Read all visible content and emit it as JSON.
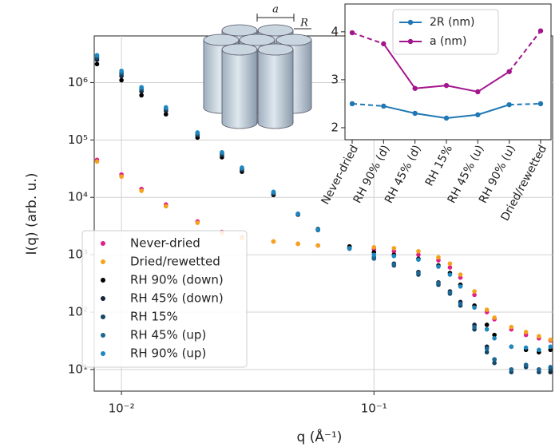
{
  "chart_data": [
    {
      "type": "scatter",
      "x_label": "q (Å⁻¹)",
      "y_label": "I(q) (arb. u.)",
      "x": [
        0.008,
        0.01,
        0.012,
        0.015,
        0.02,
        0.025,
        0.03,
        0.04,
        0.05,
        0.06,
        0.08,
        0.1,
        0.12,
        0.15,
        0.18,
        0.2,
        0.22,
        0.25,
        0.28,
        0.3,
        0.35,
        0.4,
        0.45,
        0.5
      ],
      "series": [
        {
          "name": "Never-dried",
          "color": "#e0218a",
          "values": [
            45000,
            25000,
            14000,
            7500,
            3800,
            2500,
            2000,
            1700,
            1550,
            1450,
            1300,
            1250,
            1150,
            1000,
            800,
            600,
            400,
            200,
            100,
            75,
            50,
            40,
            35,
            32
          ]
        },
        {
          "name": "Dried/rewetted",
          "color": "#f5a21b",
          "values": [
            42000,
            23000,
            13000,
            7000,
            3600,
            2400,
            1950,
            1700,
            1550,
            1450,
            1350,
            1350,
            1300,
            1150,
            900,
            700,
            450,
            230,
            110,
            80,
            55,
            45,
            38,
            33
          ]
        },
        {
          "name": "RH 90% (down)",
          "color": "#000000",
          "values": [
            2100000,
            1100000,
            600000,
            280000,
            110000,
            50000,
            28000,
            11000,
            5000,
            2800,
            1400,
            1100,
            1000,
            850,
            650,
            480,
            300,
            130,
            60,
            40,
            25,
            22,
            20,
            22
          ]
        },
        {
          "name": "RH 45% (down)",
          "color": "#15243a",
          "values": [
            2500000,
            1300000,
            700000,
            320000,
            120000,
            55000,
            30000,
            11500,
            5000,
            2700,
            1300,
            900,
            700,
            500,
            330,
            230,
            150,
            60,
            25,
            15,
            10,
            12,
            10,
            9
          ]
        },
        {
          "name": "RH 15%",
          "color": "#154766",
          "values": [
            2700000,
            1400000,
            750000,
            340000,
            125000,
            57000,
            31000,
            12000,
            5100,
            2700,
            1280,
            860,
            650,
            450,
            300,
            210,
            130,
            50,
            20,
            13,
            9,
            11,
            9,
            10
          ]
        },
        {
          "name": "RH 45% (up)",
          "color": "#1c6794",
          "values": [
            2900000,
            1500000,
            800000,
            360000,
            130000,
            60000,
            32000,
            12000,
            5100,
            2700,
            1280,
            880,
            680,
            480,
            320,
            220,
            140,
            55,
            23,
            15,
            10,
            12,
            10,
            11
          ]
        },
        {
          "name": "RH 90% (up)",
          "color": "#1e88c0",
          "values": [
            3000000,
            1600000,
            830000,
            370000,
            135000,
            61000,
            33000,
            12500,
            5200,
            2750,
            1300,
            1000,
            950,
            820,
            620,
            450,
            280,
            120,
            50,
            35,
            25,
            24,
            22,
            25
          ]
        }
      ],
      "xlim": [
        0.0078,
        0.51
      ],
      "ylim": [
        4.2,
        6500000
      ],
      "xticks": [
        {
          "value": 0.01,
          "label": "10⁻²"
        },
        {
          "value": 0.1,
          "label": "10⁻¹"
        }
      ],
      "yticks": [
        {
          "value": 10,
          "label": "10¹"
        },
        {
          "value": 100,
          "label": "10²"
        },
        {
          "value": 1000,
          "label": "10³"
        },
        {
          "value": 10000,
          "label": "10⁴"
        },
        {
          "value": 100000,
          "label": "10⁵"
        },
        {
          "value": 1000000,
          "label": "10⁶"
        }
      ],
      "log_x": true,
      "log_y": true,
      "grid": true,
      "legend": "lower left"
    },
    {
      "type": "line",
      "categories": [
        "Never-dried",
        "RH 90% (d)",
        "RH 45% (d)",
        "RH 15%",
        "RH 45% (u)",
        "RH 90% (u)",
        "Dried/rewetted"
      ],
      "category_colors": [
        "#e0218a",
        "#000000",
        "#000000",
        "#000000",
        "#000000",
        "#000000",
        "#f5a21b"
      ],
      "series": [
        {
          "name": "2R (nm)",
          "color": "#1f77b4",
          "values": [
            2.5,
            2.45,
            2.3,
            2.2,
            2.27,
            2.48,
            2.5
          ]
        },
        {
          "name": "a (nm)",
          "color": "#a3158c",
          "values": [
            3.98,
            3.75,
            2.82,
            2.88,
            2.75,
            3.17,
            4.02
          ]
        }
      ],
      "ylim": [
        1.75,
        4.58
      ],
      "yticks": [
        2,
        3,
        4
      ],
      "dashed_ends": true,
      "legend": "upper center"
    }
  ],
  "diagram": {
    "labels": [
      "a",
      "R"
    ]
  }
}
